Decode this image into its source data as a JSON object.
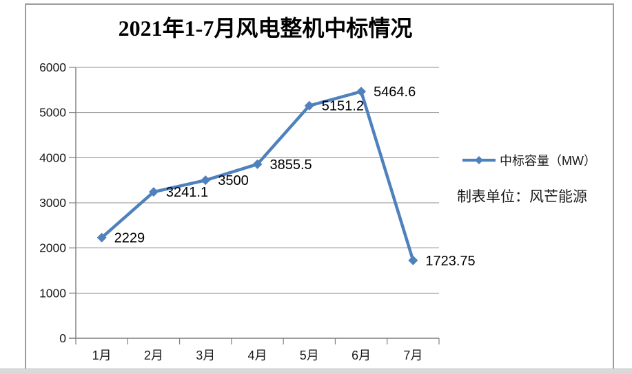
{
  "chart_data": {
    "type": "line",
    "title": "2021年1-7月风电整机中标情况",
    "categories": [
      "1月",
      "2月",
      "3月",
      "4月",
      "5月",
      "6月",
      "7月"
    ],
    "series": [
      {
        "name": "中标容量（MW）",
        "values": [
          2229,
          3241.1,
          3500,
          3855.5,
          5151.2,
          5464.6,
          1723.75
        ],
        "value_labels": [
          "2229",
          "3241.1",
          "3500",
          "3855.5",
          "5151.2",
          "5464.6",
          "1723.75"
        ],
        "color": "#4F81BD",
        "marker": "diamond"
      }
    ],
    "xlabel": "",
    "ylabel": "",
    "ylim": [
      0,
      6000
    ],
    "yticks": [
      0,
      1000,
      2000,
      3000,
      4000,
      5000,
      6000
    ],
    "grid": "horizontal",
    "legend_position": "right-middle",
    "annotation": "制表单位：风芒能源"
  },
  "colors": {
    "series_line": "#4F81BD",
    "gridline": "#8e8e8e",
    "axis_line": "#7f7f7f",
    "tick_label": "#1a1a1a",
    "data_label": "#000000",
    "title_text": "#000000",
    "frame_border": "#9c9c9c",
    "bottom_strip": "#d9d9d9"
  }
}
